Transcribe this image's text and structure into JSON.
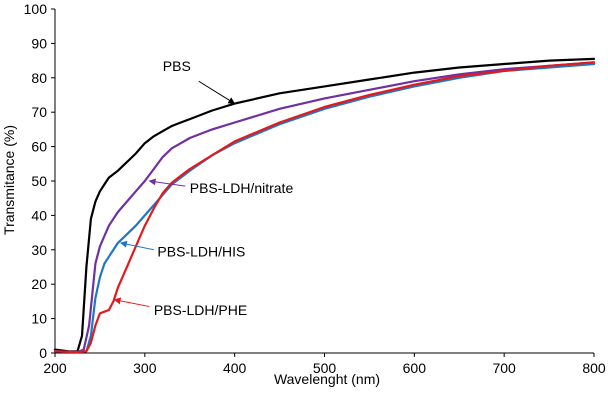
{
  "chart_data": {
    "type": "line",
    "title": "",
    "xlabel": "Wavelenght (nm)",
    "ylabel": "Transmitance (%)",
    "xlim": [
      200,
      800
    ],
    "ylim": [
      0,
      100
    ],
    "xticks": [
      200,
      300,
      400,
      500,
      600,
      700,
      800
    ],
    "yticks": [
      0,
      10,
      20,
      30,
      40,
      50,
      60,
      70,
      80,
      90,
      100
    ],
    "grid": false,
    "legend": "none",
    "series": [
      {
        "name": "PBS",
        "color": "#000000",
        "x": [
          200,
          215,
          225,
          230,
          235,
          240,
          245,
          250,
          255,
          260,
          270,
          280,
          290,
          300,
          310,
          320,
          330,
          340,
          350,
          375,
          400,
          450,
          500,
          550,
          600,
          650,
          700,
          750,
          800
        ],
        "y": [
          1,
          0.5,
          0.5,
          5,
          25,
          39,
          44,
          47,
          49,
          51,
          53,
          55.5,
          58,
          61,
          63,
          64.5,
          66,
          67,
          68,
          70.5,
          72.5,
          75.5,
          77.5,
          79.5,
          81.5,
          83,
          84,
          85,
          85.5
        ]
      },
      {
        "name": "PBS-LDH/nitrate",
        "color": "#7030a0",
        "x": [
          200,
          225,
          232,
          238,
          245,
          250,
          255,
          260,
          270,
          280,
          290,
          300,
          310,
          320,
          330,
          340,
          350,
          375,
          400,
          450,
          500,
          550,
          600,
          650,
          700,
          750,
          800
        ],
        "y": [
          0.5,
          0.3,
          1,
          8,
          26,
          31,
          34,
          37,
          41,
          44,
          47,
          50,
          53.5,
          57,
          59.5,
          61,
          62.5,
          65,
          67,
          71,
          74,
          76.5,
          79,
          81,
          82.5,
          83.5,
          84.5
        ]
      },
      {
        "name": "PBS-LDH/HIS",
        "color": "#1f77c4",
        "x": [
          200,
          225,
          235,
          240,
          245,
          250,
          255,
          260,
          270,
          280,
          290,
          300,
          310,
          320,
          330,
          340,
          350,
          375,
          400,
          450,
          500,
          550,
          600,
          650,
          700,
          750,
          800
        ],
        "y": [
          0.5,
          0.3,
          0.5,
          5,
          16,
          22,
          26,
          28,
          32,
          34.5,
          37,
          40,
          43,
          46,
          49,
          51,
          53,
          57.5,
          61,
          66.5,
          71,
          74.5,
          77.5,
          80,
          82,
          83,
          84
        ]
      },
      {
        "name": "PBS-LDH/PHE",
        "color": "#e31a1c",
        "x": [
          200,
          225,
          235,
          240,
          245,
          250,
          255,
          260,
          265,
          270,
          275,
          280,
          290,
          300,
          310,
          320,
          330,
          340,
          350,
          375,
          400,
          450,
          500,
          550,
          600,
          650,
          700,
          750,
          800
        ],
        "y": [
          0.5,
          0.3,
          0.5,
          3,
          8,
          11.5,
          12,
          12.5,
          15,
          19,
          22,
          25,
          31,
          37,
          42,
          46.5,
          49.5,
          51.5,
          53.5,
          57.5,
          61.5,
          67,
          71.5,
          75,
          78,
          80.5,
          82,
          83.5,
          84.5
        ]
      }
    ],
    "annotations": [
      {
        "text": "PBS",
        "target_series": "PBS",
        "arrow_to": [
          400,
          72.5
        ],
        "arrow_from": [
          360,
          79
        ],
        "text_at": [
          320,
          83.5
        ]
      },
      {
        "text": "PBS-LDH/nitrate",
        "target_series": "PBS-LDH/nitrate",
        "arrow_to": [
          305,
          50
        ],
        "arrow_from": [
          345,
          48.5
        ],
        "text_at": [
          350,
          48
        ]
      },
      {
        "text": "PBS-LDH/HIS",
        "target_series": "PBS-LDH/HIS",
        "arrow_to": [
          273,
          32
        ],
        "arrow_from": [
          310,
          30
        ],
        "text_at": [
          314,
          29.5
        ]
      },
      {
        "text": "PBS-LDH/PHE",
        "target_series": "PBS-LDH/PHE",
        "arrow_to": [
          266,
          15.5
        ],
        "arrow_from": [
          305,
          13.5
        ],
        "text_at": [
          310,
          12.5
        ]
      }
    ]
  }
}
